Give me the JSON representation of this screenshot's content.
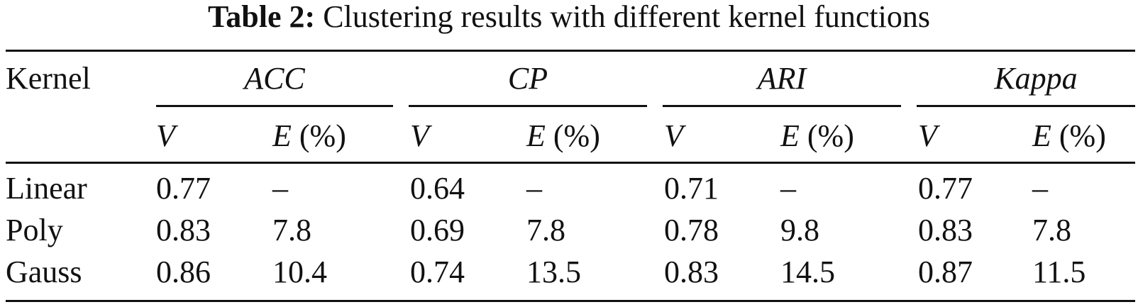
{
  "caption": {
    "label": "Table 2:",
    "text": "Clustering results with different kernel functions"
  },
  "header": {
    "row_label": "Kernel",
    "groups": [
      "ACC",
      "CP",
      "ARI",
      "Kappa"
    ],
    "sub_v": "V",
    "sub_e": "E",
    "sub_e_unit": "(%)"
  },
  "rows": [
    {
      "kernel": "Linear",
      "cells": [
        "0.77",
        "–",
        "0.64",
        "–",
        "0.71",
        "–",
        "0.77",
        "–"
      ]
    },
    {
      "kernel": "Poly",
      "cells": [
        "0.83",
        "7.8",
        "0.69",
        "7.8",
        "0.78",
        "9.8",
        "0.83",
        "7.8"
      ]
    },
    {
      "kernel": "Gauss",
      "cells": [
        "0.86",
        "10.4",
        "0.74",
        "13.5",
        "0.83",
        "14.5",
        "0.87",
        "11.5"
      ]
    }
  ]
}
